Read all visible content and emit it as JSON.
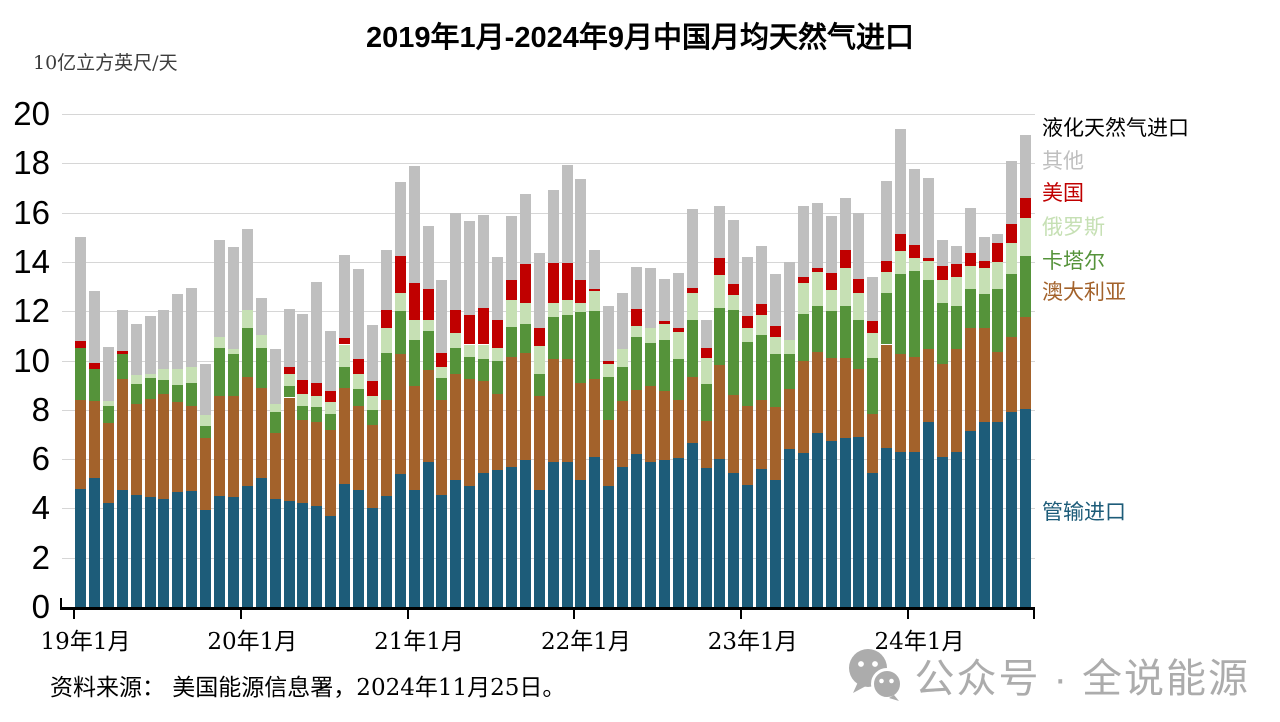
{
  "header": {
    "title": "2019年1月-2024年9月中国月均天然气进口"
  },
  "legend": {
    "header": "液化天然气进口",
    "items": [
      {
        "label": "其他",
        "color": "#bfbfbf"
      },
      {
        "label": "美国",
        "color": "#c00000"
      },
      {
        "label": "俄罗斯",
        "color": "#c6e0b4"
      },
      {
        "label": "卡塔尔",
        "color": "#55933a"
      },
      {
        "label": "澳大利亚",
        "color": "#a3622b"
      },
      {
        "label": "管输进口",
        "color": "#1d5c79"
      }
    ]
  },
  "footer": {
    "source": "资料来源： 美国能源信息署，2024年11月25日。",
    "watermark": "公众号 · 全说能源"
  },
  "chart_data": {
    "type": "bar",
    "stacked": true,
    "title": "2019年1月-2024年9月中国月均天然气进口",
    "unit_label": "10亿立方英尺/天",
    "ylabel": "10亿立方英尺/天",
    "ylim": [
      0,
      20
    ],
    "y_ticks": [
      0,
      2,
      4,
      6,
      8,
      10,
      12,
      14,
      16,
      18,
      20
    ],
    "grid": true,
    "legend_position": "right",
    "x_tick_labels": [
      "19年1月",
      "20年1月",
      "21年1月",
      "22年1月",
      "23年1月",
      "24年1月"
    ],
    "x_tick_indices": [
      0,
      12,
      24,
      36,
      48,
      60
    ],
    "x": [
      "2019-01",
      "2019-02",
      "2019-03",
      "2019-04",
      "2019-05",
      "2019-06",
      "2019-07",
      "2019-08",
      "2019-09",
      "2019-10",
      "2019-11",
      "2019-12",
      "2020-01",
      "2020-02",
      "2020-03",
      "2020-04",
      "2020-05",
      "2020-06",
      "2020-07",
      "2020-08",
      "2020-09",
      "2020-10",
      "2020-11",
      "2020-12",
      "2021-01",
      "2021-02",
      "2021-03",
      "2021-04",
      "2021-05",
      "2021-06",
      "2021-07",
      "2021-08",
      "2021-09",
      "2021-10",
      "2021-11",
      "2021-12",
      "2022-01",
      "2022-02",
      "2022-03",
      "2022-04",
      "2022-05",
      "2022-06",
      "2022-07",
      "2022-08",
      "2022-09",
      "2022-10",
      "2022-11",
      "2022-12",
      "2023-01",
      "2023-02",
      "2023-03",
      "2023-04",
      "2023-05",
      "2023-06",
      "2023-07",
      "2023-08",
      "2023-09",
      "2023-10",
      "2023-11",
      "2023-12",
      "2024-01",
      "2024-02",
      "2024-03",
      "2024-04",
      "2024-05",
      "2024-06",
      "2024-07",
      "2024-08",
      "2024-09"
    ],
    "series": [
      {
        "key": "pipeline",
        "name": "管输进口",
        "color": "#1d5c79",
        "values": [
          4.8,
          5.25,
          4.2,
          4.75,
          4.55,
          4.45,
          4.4,
          4.65,
          4.7,
          3.95,
          4.5,
          4.45,
          4.9,
          5.25,
          4.4,
          4.3,
          4.2,
          4.1,
          3.7,
          5.0,
          4.75,
          4.0,
          4.5,
          5.4,
          4.75,
          5.9,
          4.55,
          5.15,
          4.9,
          5.45,
          5.55,
          5.7,
          5.95,
          4.75,
          5.9,
          5.9,
          5.15,
          6.1,
          4.9,
          5.7,
          6.2,
          5.9,
          5.95,
          6.05,
          6.65,
          5.65,
          6.0,
          5.45,
          4.95,
          5.6,
          5.15,
          6.4,
          6.25,
          7.05,
          6.75,
          6.85,
          6.9,
          5.45,
          6.45,
          6.3,
          6.3,
          7.5,
          6.1,
          6.3,
          7.15,
          7.5,
          7.5,
          7.9,
          8.05
        ]
      },
      {
        "key": "australia",
        "name": "澳大利亚",
        "color": "#a3622b",
        "values": [
          3.6,
          3.1,
          3.25,
          4.5,
          3.7,
          4.0,
          4.25,
          3.65,
          3.45,
          2.9,
          4.05,
          4.1,
          4.45,
          3.65,
          2.65,
          4.2,
          3.4,
          3.4,
          3.5,
          3.9,
          3.4,
          3.4,
          3.9,
          4.85,
          4.2,
          3.7,
          3.85,
          4.3,
          4.35,
          3.7,
          3.1,
          4.45,
          4.35,
          3.8,
          4.15,
          4.15,
          3.95,
          3.15,
          2.7,
          2.65,
          2.6,
          3.05,
          2.8,
          2.35,
          2.7,
          1.9,
          3.8,
          3.15,
          3.2,
          2.8,
          2.95,
          2.45,
          3.75,
          3.3,
          3.35,
          3.25,
          2.75,
          2.4,
          4.2,
          3.95,
          3.85,
          2.95,
          3.75,
          4.15,
          4.15,
          3.8,
          2.85,
          3.05,
          3.7
        ]
      },
      {
        "key": "qatar",
        "name": "卡塔尔",
        "color": "#55933a",
        "values": [
          2.1,
          1.3,
          0.7,
          1.0,
          0.8,
          0.85,
          0.55,
          0.7,
          0.95,
          0.5,
          1.95,
          1.7,
          1.95,
          1.6,
          0.85,
          0.45,
          0.55,
          0.6,
          0.65,
          0.85,
          0.7,
          0.6,
          1.9,
          1.75,
          1.9,
          1.6,
          0.9,
          1.05,
          0.9,
          0.9,
          1.35,
          1.2,
          1.2,
          0.9,
          1.7,
          1.8,
          2.85,
          2.75,
          1.75,
          1.4,
          2.15,
          1.75,
          2.1,
          1.65,
          2.3,
          1.5,
          2.35,
          3.45,
          2.6,
          2.65,
          2.15,
          1.4,
          1.9,
          1.85,
          1.9,
          2.1,
          2.0,
          2.25,
          2.1,
          3.25,
          3.5,
          2.8,
          2.5,
          1.75,
          1.6,
          1.4,
          2.55,
          2.55,
          2.5
        ]
      },
      {
        "key": "russia",
        "name": "俄罗斯",
        "color": "#c6e0b4",
        "values": [
          0,
          0,
          0.2,
          0,
          0.35,
          0.15,
          0.45,
          0.65,
          0.65,
          0.45,
          0.45,
          0.2,
          0.75,
          0.55,
          0.35,
          0.5,
          0.5,
          0.45,
          0.45,
          0.9,
          0.6,
          0.55,
          1.0,
          0.75,
          0.8,
          0.45,
          0.45,
          0.6,
          0.5,
          0.6,
          0.5,
          1.1,
          0.85,
          1.15,
          0.6,
          0.6,
          0.4,
          0.8,
          0.5,
          0.7,
          0.45,
          0.6,
          0.65,
          1.1,
          1.1,
          1.05,
          1.3,
          0.6,
          0.55,
          0.8,
          0.7,
          0.6,
          1.25,
          1.4,
          0.85,
          1.55,
          1.1,
          1.0,
          0.85,
          0.95,
          0.5,
          0.8,
          0.9,
          1.2,
          0.95,
          1.05,
          1.1,
          1.25,
          1.55
        ]
      },
      {
        "key": "usa",
        "name": "美国",
        "color": "#c00000",
        "values": [
          0.3,
          0.25,
          0,
          0.15,
          0,
          0,
          0,
          0,
          0,
          0,
          0,
          0,
          0,
          0,
          0,
          0.3,
          0.55,
          0.55,
          0.45,
          0.25,
          0.6,
          0.6,
          0.75,
          1.5,
          1.5,
          1.25,
          0.55,
          0.95,
          1.2,
          1.5,
          1.15,
          0.8,
          1.55,
          0.7,
          1.6,
          1.5,
          0.9,
          0.1,
          0.15,
          0,
          0.7,
          0,
          0.1,
          0.15,
          0.2,
          0.4,
          0.7,
          0.45,
          0.5,
          0.45,
          0.45,
          0,
          0.25,
          0.15,
          0.7,
          0.75,
          0.55,
          0.5,
          0.45,
          0.7,
          0.55,
          0.1,
          0.6,
          0.5,
          0.5,
          0.3,
          0.75,
          0.8,
          0.8
        ]
      },
      {
        "key": "other",
        "name": "其他",
        "color": "#bfbfbf",
        "values": [
          4.2,
          2.9,
          2.2,
          1.65,
          2.1,
          2.35,
          2.4,
          3.05,
          3.2,
          2.05,
          3.95,
          4.15,
          3.3,
          1.5,
          2.2,
          2.35,
          2.7,
          4.1,
          2.45,
          3.4,
          3.65,
          2.3,
          2.45,
          3.0,
          4.75,
          2.55,
          2.95,
          3.95,
          3.8,
          3.75,
          2.55,
          2.6,
          2.85,
          3.05,
          2.95,
          4.0,
          4.1,
          1.6,
          2.2,
          2.3,
          1.7,
          2.45,
          1.7,
          2.25,
          3.2,
          1.15,
          2.1,
          2.6,
          2.4,
          2.35,
          2.1,
          3.15,
          2.85,
          2.65,
          2.3,
          2.1,
          2.7,
          1.8,
          3.25,
          4.25,
          3.05,
          3.25,
          1.05,
          0.75,
          1.85,
          0.95,
          0.4,
          2.55,
          2.55
        ]
      }
    ]
  }
}
